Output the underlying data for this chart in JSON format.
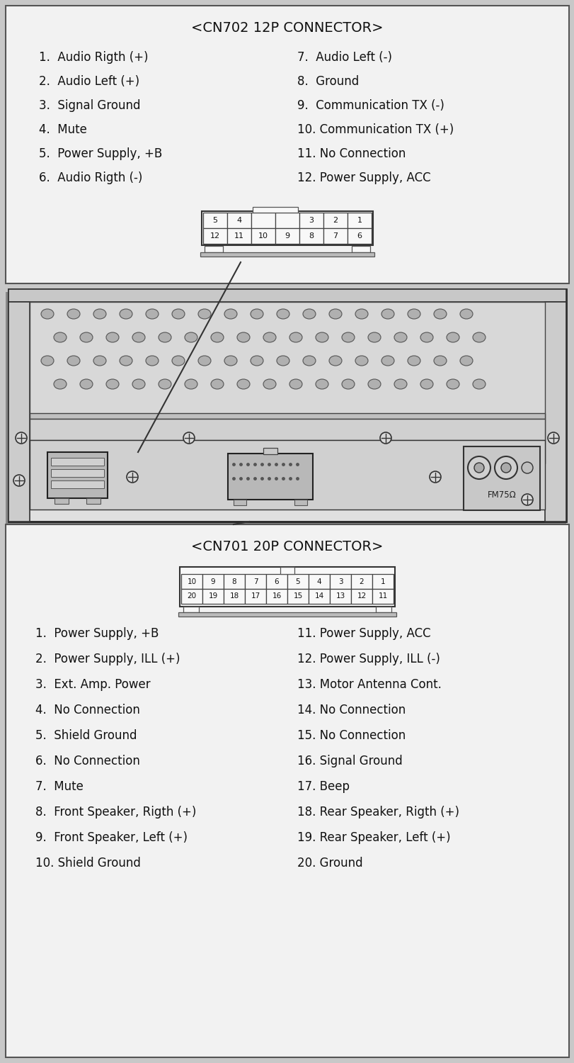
{
  "bg_color": "#c8c8c8",
  "box_bg": "#f0f0f0",
  "panel_bg": "#d0d0d0",
  "cn702_title": "<CN702 12P CONNECTOR>",
  "cn702_left": [
    "1.  Audio Rigth (+)",
    "2.  Audio Left (+)",
    "3.  Signal Ground",
    "4.  Mute",
    "5.  Power Supply, +B",
    "6.  Audio Rigth (-)"
  ],
  "cn702_right": [
    "7.  Audio Left (-)",
    "8.  Ground",
    "9.  Communication TX (-)",
    "10. Communication TX (+)",
    "11. No Connection",
    "12. Power Supply, ACC"
  ],
  "cn702_top_row": [
    "5",
    "4",
    "",
    "",
    "3",
    "2",
    "1"
  ],
  "cn702_bot_row": [
    "12",
    "11",
    "10",
    "9",
    "8",
    "7",
    "6"
  ],
  "cn701_title": "<CN701 20P CONNECTOR>",
  "cn701_top_row": [
    "10",
    "9",
    "8",
    "7",
    "6",
    "5",
    "4",
    "3",
    "2",
    "1"
  ],
  "cn701_bot_row": [
    "20",
    "19",
    "18",
    "17",
    "16",
    "15",
    "14",
    "13",
    "12",
    "11"
  ],
  "cn701_left": [
    "1.  Power Supply, +B",
    "2.  Power Supply, ILL (+)",
    "3.  Ext. Amp. Power",
    "4.  No Connection",
    "5.  Shield Ground",
    "6.  No Connection",
    "7.  Mute",
    "8.  Front Speaker, Rigth (+)",
    "9.  Front Speaker, Left (+)",
    "10. Shield Ground"
  ],
  "cn701_right": [
    "11. Power Supply, ACC",
    "12. Power Supply, ILL (-)",
    "13. Motor Antenna Cont.",
    "14. No Connection",
    "15. No Connection",
    "16. Signal Ground",
    "17. Beep",
    "18. Rear Speaker, Rigth (+)",
    "19. Rear Speaker, Left (+)",
    "20. Ground"
  ]
}
